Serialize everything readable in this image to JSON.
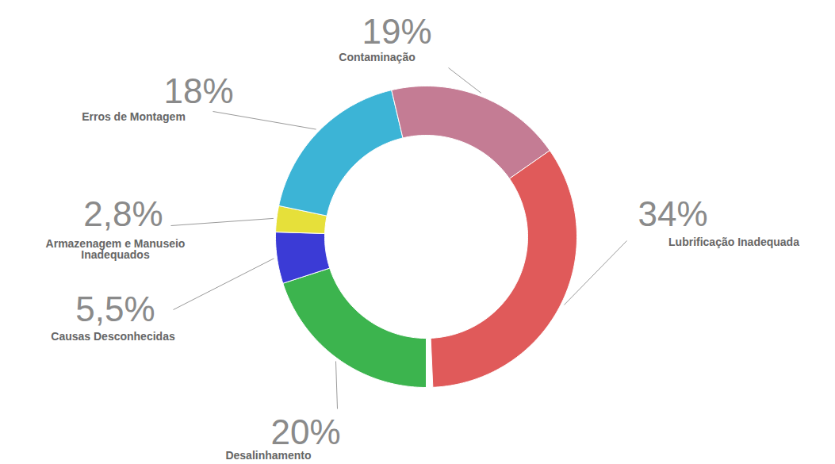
{
  "chart_data": {
    "type": "donut",
    "categories": [
      "Desalinhamento",
      "Causas Desconhecidas",
      "Armazenagem e Manuseio Inadequados",
      "Erros de Montagem",
      "Contaminação",
      "Lubrificação Inadequada"
    ],
    "values": [
      20,
      5.5,
      2.8,
      18,
      19,
      34
    ],
    "value_labels": [
      "20%",
      "5,5%",
      "2,8%",
      "18%",
      "19%",
      "34%"
    ],
    "colors": [
      "#3cb44e",
      "#3b3bd6",
      "#e6e03a",
      "#3cb4d6",
      "#c47c94",
      "#e05a5a"
    ],
    "data_labels": true
  }
}
